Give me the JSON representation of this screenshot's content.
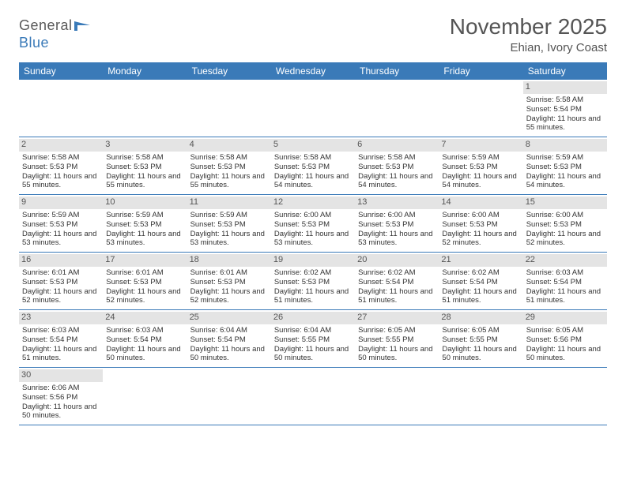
{
  "logo": {
    "text_general": "General",
    "text_blue": "Blue"
  },
  "title": "November 2025",
  "subtitle": "Ehian, Ivory Coast",
  "colors": {
    "header_bg": "#3a7ab8",
    "header_text": "#ffffff",
    "daynum_bg": "#e4e4e4",
    "body_text": "#333333",
    "title_text": "#555555",
    "border": "#3a7ab8"
  },
  "day_names": [
    "Sunday",
    "Monday",
    "Tuesday",
    "Wednesday",
    "Thursday",
    "Friday",
    "Saturday"
  ],
  "weeks": [
    [
      null,
      null,
      null,
      null,
      null,
      null,
      {
        "d": "1",
        "sr": "5:58 AM",
        "ss": "5:54 PM",
        "dl": "11 hours and 55 minutes."
      }
    ],
    [
      {
        "d": "2",
        "sr": "5:58 AM",
        "ss": "5:53 PM",
        "dl": "11 hours and 55 minutes."
      },
      {
        "d": "3",
        "sr": "5:58 AM",
        "ss": "5:53 PM",
        "dl": "11 hours and 55 minutes."
      },
      {
        "d": "4",
        "sr": "5:58 AM",
        "ss": "5:53 PM",
        "dl": "11 hours and 55 minutes."
      },
      {
        "d": "5",
        "sr": "5:58 AM",
        "ss": "5:53 PM",
        "dl": "11 hours and 54 minutes."
      },
      {
        "d": "6",
        "sr": "5:58 AM",
        "ss": "5:53 PM",
        "dl": "11 hours and 54 minutes."
      },
      {
        "d": "7",
        "sr": "5:59 AM",
        "ss": "5:53 PM",
        "dl": "11 hours and 54 minutes."
      },
      {
        "d": "8",
        "sr": "5:59 AM",
        "ss": "5:53 PM",
        "dl": "11 hours and 54 minutes."
      }
    ],
    [
      {
        "d": "9",
        "sr": "5:59 AM",
        "ss": "5:53 PM",
        "dl": "11 hours and 53 minutes."
      },
      {
        "d": "10",
        "sr": "5:59 AM",
        "ss": "5:53 PM",
        "dl": "11 hours and 53 minutes."
      },
      {
        "d": "11",
        "sr": "5:59 AM",
        "ss": "5:53 PM",
        "dl": "11 hours and 53 minutes."
      },
      {
        "d": "12",
        "sr": "6:00 AM",
        "ss": "5:53 PM",
        "dl": "11 hours and 53 minutes."
      },
      {
        "d": "13",
        "sr": "6:00 AM",
        "ss": "5:53 PM",
        "dl": "11 hours and 53 minutes."
      },
      {
        "d": "14",
        "sr": "6:00 AM",
        "ss": "5:53 PM",
        "dl": "11 hours and 52 minutes."
      },
      {
        "d": "15",
        "sr": "6:00 AM",
        "ss": "5:53 PM",
        "dl": "11 hours and 52 minutes."
      }
    ],
    [
      {
        "d": "16",
        "sr": "6:01 AM",
        "ss": "5:53 PM",
        "dl": "11 hours and 52 minutes."
      },
      {
        "d": "17",
        "sr": "6:01 AM",
        "ss": "5:53 PM",
        "dl": "11 hours and 52 minutes."
      },
      {
        "d": "18",
        "sr": "6:01 AM",
        "ss": "5:53 PM",
        "dl": "11 hours and 52 minutes."
      },
      {
        "d": "19",
        "sr": "6:02 AM",
        "ss": "5:53 PM",
        "dl": "11 hours and 51 minutes."
      },
      {
        "d": "20",
        "sr": "6:02 AM",
        "ss": "5:54 PM",
        "dl": "11 hours and 51 minutes."
      },
      {
        "d": "21",
        "sr": "6:02 AM",
        "ss": "5:54 PM",
        "dl": "11 hours and 51 minutes."
      },
      {
        "d": "22",
        "sr": "6:03 AM",
        "ss": "5:54 PM",
        "dl": "11 hours and 51 minutes."
      }
    ],
    [
      {
        "d": "23",
        "sr": "6:03 AM",
        "ss": "5:54 PM",
        "dl": "11 hours and 51 minutes."
      },
      {
        "d": "24",
        "sr": "6:03 AM",
        "ss": "5:54 PM",
        "dl": "11 hours and 50 minutes."
      },
      {
        "d": "25",
        "sr": "6:04 AM",
        "ss": "5:54 PM",
        "dl": "11 hours and 50 minutes."
      },
      {
        "d": "26",
        "sr": "6:04 AM",
        "ss": "5:55 PM",
        "dl": "11 hours and 50 minutes."
      },
      {
        "d": "27",
        "sr": "6:05 AM",
        "ss": "5:55 PM",
        "dl": "11 hours and 50 minutes."
      },
      {
        "d": "28",
        "sr": "6:05 AM",
        "ss": "5:55 PM",
        "dl": "11 hours and 50 minutes."
      },
      {
        "d": "29",
        "sr": "6:05 AM",
        "ss": "5:56 PM",
        "dl": "11 hours and 50 minutes."
      }
    ],
    [
      {
        "d": "30",
        "sr": "6:06 AM",
        "ss": "5:56 PM",
        "dl": "11 hours and 50 minutes."
      },
      null,
      null,
      null,
      null,
      null,
      null
    ]
  ],
  "labels": {
    "sunrise": "Sunrise:",
    "sunset": "Sunset:",
    "daylight": "Daylight:"
  }
}
